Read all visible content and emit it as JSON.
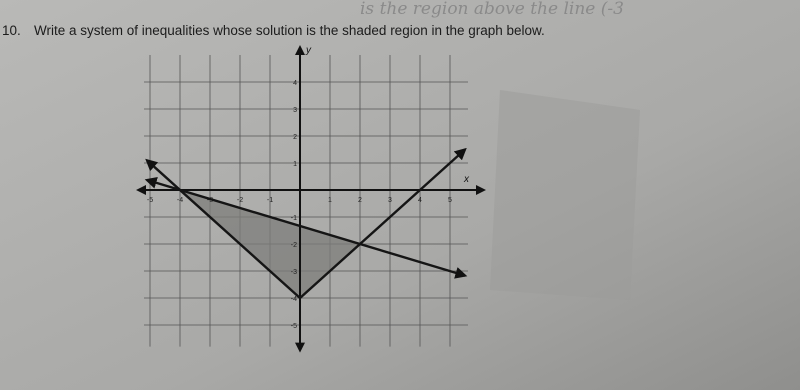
{
  "question": {
    "number": "10.",
    "text": "Write a system of inequalities whose solution is the shaded region in the graph below."
  },
  "handwriting": "is the region above the line (-3",
  "graph": {
    "x_label": "x",
    "y_label": "y",
    "xlim": [
      -5.2,
      5.6
    ],
    "ylim": [
      -5.8,
      5
    ],
    "xticks": [
      -5,
      -4,
      -3,
      -2,
      -1,
      1,
      2,
      3,
      4,
      5
    ],
    "yticks": [
      4,
      3,
      2,
      1,
      -1,
      -2,
      -3,
      -4,
      -5
    ],
    "lines": [
      {
        "x": [
          -5.1,
          0,
          5.5
        ],
        "y": [
          1.1,
          -4,
          1.5
        ]
      },
      {
        "x": [
          -5.1,
          5.5
        ],
        "y": [
          0.37,
          -3.17
        ]
      }
    ],
    "shaded_region": {
      "x": [
        -4,
        0,
        2
      ],
      "y": [
        0,
        -4,
        -2
      ]
    }
  }
}
